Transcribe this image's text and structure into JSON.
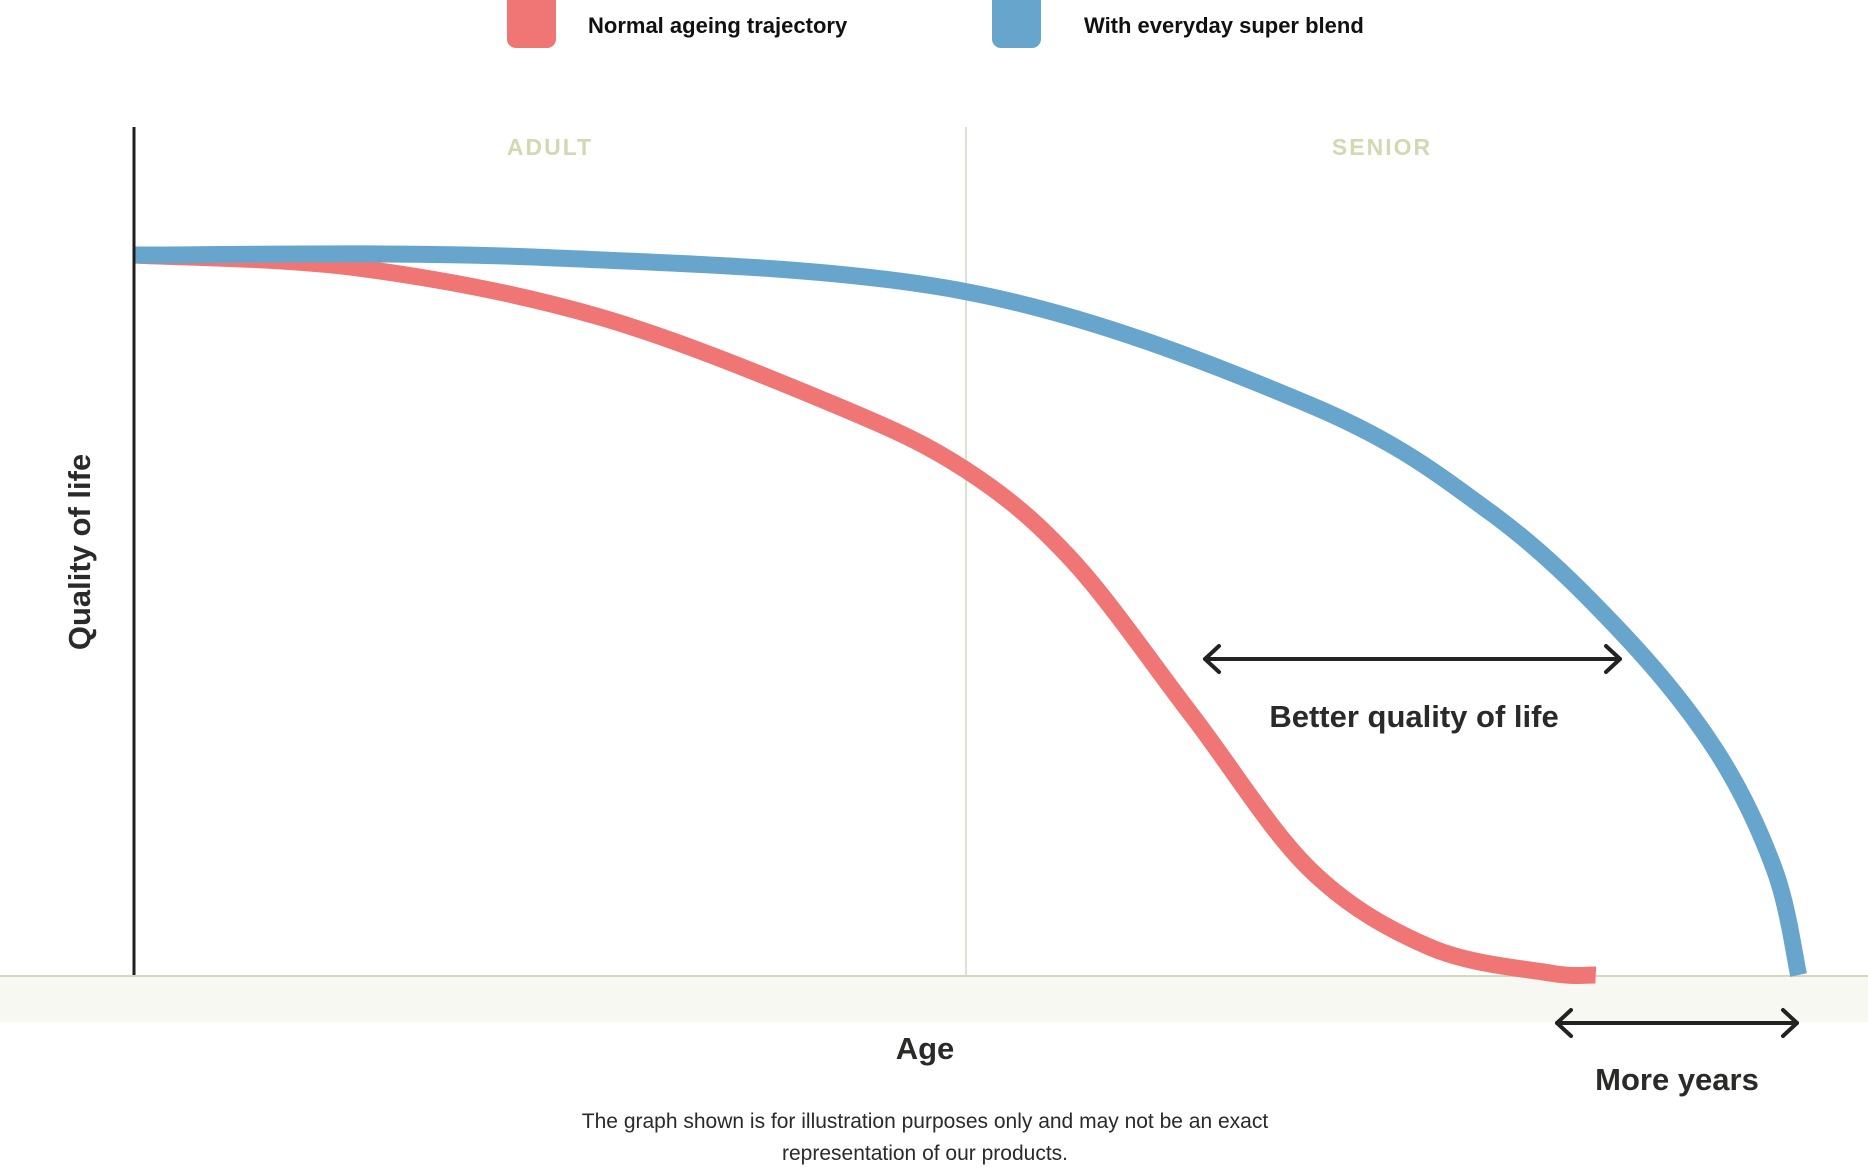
{
  "chart_data": {
    "type": "line",
    "title": "",
    "xlabel": "Age",
    "ylabel": "Quality of life",
    "xlim": [
      0,
      100
    ],
    "ylim": [
      0,
      100
    ],
    "grid": false,
    "legend_position": "top-center",
    "phases": [
      "ADULT",
      "SENIOR"
    ],
    "series": [
      {
        "name": "Normal ageing trajectory",
        "color": "#f07575",
        "x": [
          0,
          12.9,
          26.7,
          40.4,
          48.0,
          54.1,
          61.0,
          67.8,
          74.7,
          81.6,
          84.3
        ],
        "y": [
          100,
          98.2,
          91.5,
          79.2,
          70.1,
          57.6,
          36.1,
          14.7,
          3.9,
          0.3,
          0
        ]
      },
      {
        "name": "With everyday super blend",
        "color": "#67a5cc",
        "x": [
          0,
          23.2,
          48.0,
          67.8,
          78.2,
          85.7,
          91.2,
          94.6,
          96.0
        ],
        "y": [
          100,
          99.7,
          94.9,
          79.2,
          64.3,
          47.8,
          31.3,
          14.7,
          0
        ]
      }
    ],
    "annotations": {
      "better_quality": "Better quality of life",
      "more_years": "More years"
    },
    "footnote": [
      "The graph shown is for illustration purposes only and may not be an exact",
      "representation of our products."
    ]
  }
}
